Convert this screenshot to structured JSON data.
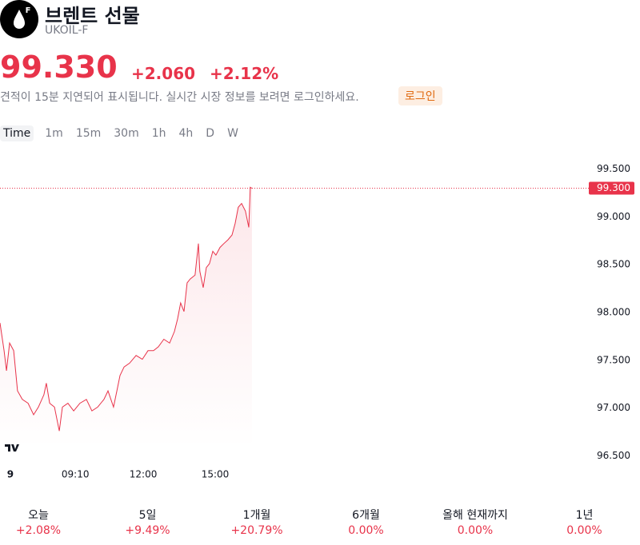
{
  "header": {
    "badge": "F",
    "title": "브렌트 선물",
    "symbol": "UKOIL-F",
    "price": "99.330",
    "change": "+2.060",
    "change_pct": "+2.12%",
    "notice": "견적이 15분 지연되어 표시됩니다. 실시간 시장 정보를 보려면 로그인하세요.",
    "login": "로그인"
  },
  "intervals": [
    "Time",
    "1m",
    "15m",
    "30m",
    "1h",
    "4h",
    "D",
    "W"
  ],
  "chart_data": {
    "type": "line",
    "color": "#e8334a",
    "x": [
      6.03,
      6.2,
      6.3,
      6.43,
      6.6,
      6.76,
      6.96,
      7.2,
      7.43,
      7.63,
      7.86,
      7.96,
      8.1,
      8.3,
      8.5,
      8.63,
      8.86,
      9.1,
      9.36,
      9.63,
      9.86,
      10.1,
      10.36,
      10.53,
      10.76,
      10.9,
      11.03,
      11.2,
      11.43,
      11.7,
      11.96,
      12.2,
      12.43,
      12.63,
      12.86,
      13.1,
      13.3,
      13.43,
      13.56,
      13.7,
      13.83,
      13.96,
      14.16,
      14.3,
      14.36,
      14.5,
      14.63,
      14.76,
      14.9,
      15.03,
      15.2,
      15.36,
      15.53,
      15.7,
      15.83,
      15.96,
      16.1,
      16.26,
      16.4,
      16.46,
      16.53
    ],
    "values": [
      97.89,
      97.6,
      97.39,
      97.68,
      97.6,
      97.18,
      97.09,
      97.05,
      96.93,
      97.01,
      97.14,
      97.26,
      97.05,
      97.01,
      96.76,
      97.01,
      97.05,
      96.97,
      97.05,
      97.09,
      96.97,
      97.01,
      97.09,
      97.18,
      97.01,
      97.18,
      97.34,
      97.43,
      97.47,
      97.55,
      97.51,
      97.6,
      97.6,
      97.64,
      97.72,
      97.68,
      97.8,
      97.93,
      98.1,
      98.01,
      98.31,
      98.35,
      98.39,
      98.72,
      98.43,
      98.26,
      98.47,
      98.51,
      98.64,
      98.6,
      98.68,
      98.72,
      98.76,
      98.81,
      98.93,
      99.1,
      99.14,
      99.06,
      98.89,
      99.31,
      99.3
    ],
    "xlim": [
      6.03,
      30.37
    ],
    "ylim": [
      96.42,
      99.68
    ],
    "xticks": [
      {
        "value": 6.46,
        "label": "9"
      },
      {
        "value": 9.17,
        "label": "09:10"
      },
      {
        "value": 12,
        "label": "12:00"
      },
      {
        "value": 15,
        "label": "15:00"
      }
    ],
    "yticks": [
      {
        "value": 96.5,
        "label": "96.500"
      },
      {
        "value": 97,
        "label": "97.000"
      },
      {
        "value": 97.5,
        "label": "97.500"
      },
      {
        "value": 98,
        "label": "98.000"
      },
      {
        "value": 98.5,
        "label": "98.500"
      },
      {
        "value": 99,
        "label": "99.000"
      },
      {
        "value": 99.5,
        "label": "99.500"
      }
    ],
    "last_price": {
      "value": 99.3,
      "label": "99.300"
    }
  },
  "performance": [
    {
      "period": "오늘",
      "change": "+2.08%"
    },
    {
      "period": "5일",
      "change": "+9.49%"
    },
    {
      "period": "1개월",
      "change": "+20.79%"
    },
    {
      "period": "6개월",
      "change": "0.00%"
    },
    {
      "period": "올해 현재까지",
      "change": "0.00%"
    },
    {
      "period": "1년",
      "change": "0.00%"
    }
  ]
}
